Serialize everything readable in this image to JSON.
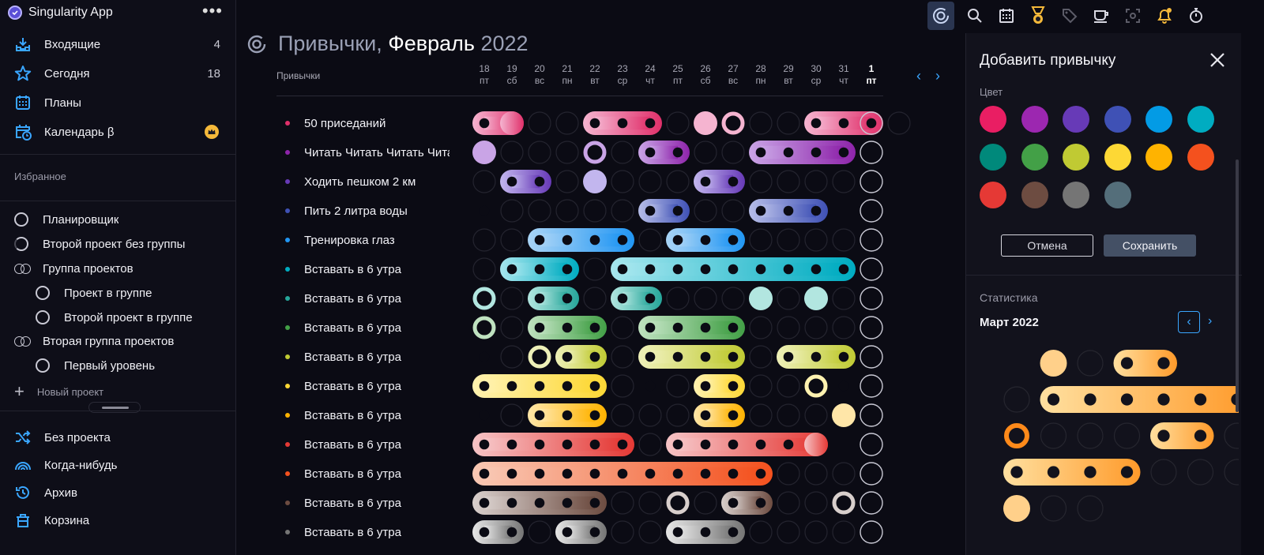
{
  "app": {
    "name": "Singularity App",
    "more": "•••"
  },
  "nav": [
    {
      "label": "Входящие",
      "count": "4",
      "icon": "inbox-icon"
    },
    {
      "label": "Сегодня",
      "count": "18",
      "icon": "star-icon"
    },
    {
      "label": "Планы",
      "count": "",
      "icon": "calendar-grid-icon"
    },
    {
      "label": "Календарь β",
      "count": "",
      "icon": "calendar-clock-icon"
    }
  ],
  "favorites": {
    "title": "Избранное"
  },
  "projects": [
    {
      "label": "Планировщик",
      "type": "project"
    },
    {
      "label": "Второй проект без группы",
      "type": "project"
    },
    {
      "label": "Группа проектов",
      "type": "group"
    },
    {
      "label": "Проект в группе",
      "type": "project"
    },
    {
      "label": "Второй проект в группе",
      "type": "project"
    },
    {
      "label": "Вторая группа проектов",
      "type": "group"
    },
    {
      "label": "Первый уровень",
      "type": "project"
    }
  ],
  "new_project": "Новый проект",
  "bottom_nav": [
    {
      "label": "Без проекта",
      "icon": "shuffle-icon"
    },
    {
      "label": "Когда-нибудь",
      "icon": "rainbow-icon"
    },
    {
      "label": "Архив",
      "icon": "history-icon"
    },
    {
      "label": "Корзина",
      "icon": "trash-icon"
    }
  ],
  "main": {
    "title_a": "Привычки,",
    "title_b": "Февраль",
    "title_c": "2022",
    "habits_label": "Привычки"
  },
  "dates": [
    {
      "d": "18",
      "w": "пт"
    },
    {
      "d": "19",
      "w": "сб"
    },
    {
      "d": "20",
      "w": "вс"
    },
    {
      "d": "21",
      "w": "пн"
    },
    {
      "d": "22",
      "w": "вт"
    },
    {
      "d": "23",
      "w": "ср"
    },
    {
      "d": "24",
      "w": "чт"
    },
    {
      "d": "25",
      "w": "пт"
    },
    {
      "d": "26",
      "w": "сб"
    },
    {
      "d": "27",
      "w": "вс"
    },
    {
      "d": "28",
      "w": "пн"
    },
    {
      "d": "29",
      "w": "вт"
    },
    {
      "d": "30",
      "w": "ср"
    },
    {
      "d": "31",
      "w": "чт"
    },
    {
      "d": "1",
      "w": "пт",
      "today": true
    }
  ],
  "habits": [
    {
      "name": "50 приседаний",
      "color": "#e0306a",
      "light": "#f5b4d0",
      "states": "2100222014002220"
    },
    {
      "name": "Читать Читать Читать Читать",
      "color": "#8e24aa",
      "light": "#c9a4e6",
      "states": "10004022002222"
    },
    {
      "name": "Ходить пешком 2 км",
      "color": "#673ab7",
      "light": "#c2b6ee",
      "states": "02201000220000"
    },
    {
      "name": "Пить 2 литра воды",
      "color": "#3f51b5",
      "light": "#b6bde8",
      "states": "2000002200222"
    },
    {
      "name": "Тренировка глаз",
      "color": "#2196f3",
      "light": "#a9d4f6",
      "states": "00222202220000"
    },
    {
      "name": "Вставать в 6 утра",
      "color": "#00acc1",
      "light": "#a6e6ee",
      "states": "02220222222222"
    },
    {
      "name": "Вставать в 6 утра",
      "color": "#26a69a",
      "light": "#b2e6e0",
      "states": "40220220001010"
    },
    {
      "name": "Вставать в 6 утра",
      "color": "#43a047",
      "light": "#bfe2c0",
      "states": "40222022220000"
    },
    {
      "name": "Вставать в 6 утра",
      "color": "#c0ca33",
      "light": "#eef0b8",
      "states": "20422022220222"
    },
    {
      "name": "Вставать в 6 утра",
      "color": "#fdd835",
      "light": "#fff2b0",
      "states": "22222020220042"
    },
    {
      "name": "Вставать в 6 утра",
      "color": "#ffb300",
      "light": "#ffe6a8",
      "states": "20222000220001"
    },
    {
      "name": "Вставать в 6 утра",
      "color": "#e53935",
      "light": "#f6c4c6",
      "states": "2222220222221"
    },
    {
      "name": "Вставать в 6 утра",
      "color": "#f4511e",
      "light": "#f8c8b4",
      "states": "22222222222000"
    },
    {
      "name": "Вставать в 6 утра",
      "color": "#6d4c41",
      "light": "#d8cfcc",
      "states": "22222004022004"
    },
    {
      "name": "Вставать в 6 утра",
      "color": "#757575",
      "light": "#e6e6e6",
      "states": "22022002220000"
    }
  ],
  "panel": {
    "title": "Добавить привычку",
    "color_label": "Цвет",
    "colors": [
      "#e91e63",
      "#9c27b0",
      "#673ab7",
      "#3f51b5",
      "#039be5",
      "#00acc1",
      "#00897b",
      "#43a047",
      "#c0ca33",
      "#fdd835",
      "#ffb300",
      "#f4511e",
      "#e53935",
      "#6d4c41",
      "#757575",
      "#546e7a"
    ],
    "cancel": "Отмена",
    "save": "Сохранить",
    "stats_title": "Статистика",
    "month": "Март 2022",
    "calendar_rows": [
      "x1022",
      "0222222",
      "4000220",
      "22220002",
      "100"
    ]
  }
}
